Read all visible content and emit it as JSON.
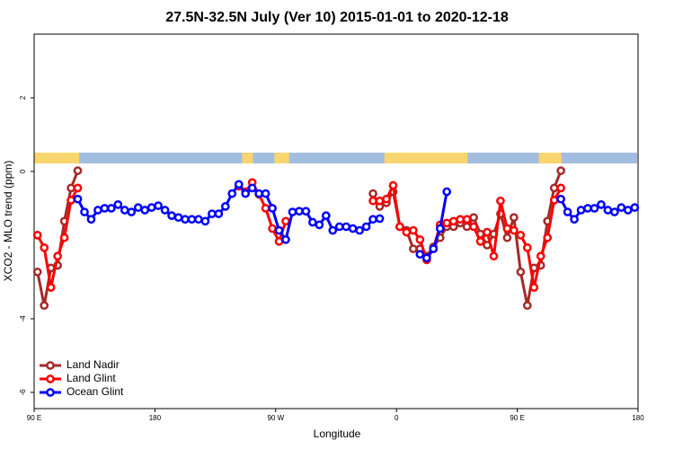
{
  "chart_data": {
    "type": "line",
    "title": "27.5N-32.5N July (Ver 10)   2015-01-01 to 2020-12-18",
    "x_label": "Longitude",
    "y_label": "XCO2 - MLO trend (ppm)",
    "xlim": [
      90,
      540
    ],
    "ylim": [
      -6.44,
      3.73
    ],
    "xticks": [
      {
        "value": 90,
        "label": "90 E"
      },
      180,
      {
        "value": 270,
        "label": "90 W"
      },
      {
        "value": 360,
        "label": "0"
      },
      {
        "value": 450,
        "label": "90 E"
      },
      {
        "value": 540,
        "label": "180"
      }
    ],
    "yticks": [
      -6,
      -4,
      0,
      2
    ],
    "legend": "bottom-left",
    "land_color": "#f9d56e",
    "ocean_color": "#a3bde0",
    "land_ranges": [
      [
        90,
        123.5
      ],
      [
        245,
        253
      ],
      [
        269,
        280
      ],
      [
        351,
        413
      ],
      [
        466,
        483
      ]
    ],
    "series": [
      {
        "name": "Land Nadir",
        "color": "#a52a2a",
        "x": [
          92.5,
          97.5,
          102.5,
          107.5,
          112.5,
          117.5,
          122.5,
          127.5,
          342.5,
          347.5,
          352.5,
          357.5,
          362.5,
          367.5,
          372.5,
          377.5,
          382.5,
          387.5,
          392.5,
          397.5,
          402.5,
          407.5,
          412.5,
          417.5,
          422.5,
          427.5,
          432.5,
          437.5,
          442.5,
          447.5,
          452.5,
          457.5,
          462.5,
          467.5,
          472.5,
          477.5,
          482.5
        ],
        "values": [
          -2.73,
          -3.64,
          -2.62,
          -2.55,
          -1.35,
          -0.45,
          0.02,
          null,
          -0.6,
          -0.95,
          -0.85,
          -0.55,
          -1.5,
          -1.6,
          -2.1,
          -2.1,
          -2.3,
          -2.05,
          -1.8,
          -1.5,
          -1.5,
          -1.4,
          -1.5,
          -1.25,
          -1.7,
          -2.0,
          -1.7,
          -1.15,
          -1.8,
          -1.25,
          -2.73,
          -3.64,
          -2.62,
          -2.55,
          -1.35,
          -0.45,
          0.02
        ]
      },
      {
        "name": "Land Glint",
        "color": "#ff0000",
        "x": [
          92.5,
          97.5,
          102.5,
          107.5,
          112.5,
          117.5,
          122.5,
          127.5,
          242.5,
          247.5,
          252.5,
          257.5,
          262.5,
          267.5,
          272.5,
          277.5,
          282.5,
          342.5,
          347.5,
          352.5,
          357.5,
          362.5,
          367.5,
          372.5,
          377.5,
          382.5,
          387.5,
          392.5,
          397.5,
          402.5,
          407.5,
          412.5,
          417.5,
          422.5,
          427.5,
          432.5,
          437.5,
          442.5,
          447.5,
          452.5,
          457.5,
          462.5,
          467.5,
          472.5,
          477.5,
          482.5
        ],
        "values": [
          -1.73,
          -2.07,
          -3.15,
          -2.3,
          -1.8,
          -0.78,
          -0.45,
          null,
          -0.4,
          -0.55,
          -0.3,
          -0.62,
          -1.0,
          -1.55,
          -1.9,
          -1.35,
          null,
          -0.8,
          -0.8,
          -0.75,
          -0.38,
          -1.5,
          -1.65,
          -1.6,
          -1.85,
          -2.4,
          -2.1,
          -1.45,
          -1.4,
          -1.35,
          -1.3,
          -1.3,
          -1.5,
          -1.9,
          -1.65,
          -2.3,
          -0.8,
          -1.55,
          -1.6,
          -1.73,
          -2.07,
          -3.15,
          -2.3,
          -1.8,
          -0.78,
          -0.45
        ]
      },
      {
        "name": "Ocean Glint",
        "color": "#0000ff",
        "x": [
          122.5,
          127.5,
          132.5,
          137.5,
          142.5,
          147.5,
          152.5,
          157.5,
          162.5,
          167.5,
          172.5,
          177.5,
          182.5,
          187.5,
          192.5,
          197.5,
          202.5,
          207.5,
          212.5,
          217.5,
          222.5,
          227.5,
          232.5,
          237.5,
          242.5,
          247.5,
          252.5,
          257.5,
          262.5,
          267.5,
          272.5,
          277.5,
          282.5,
          287.5,
          292.5,
          297.5,
          302.5,
          307.5,
          312.5,
          317.5,
          322.5,
          327.5,
          332.5,
          337.5,
          342.5,
          347.5,
          372.5,
          377.5,
          382.5,
          387.5,
          392.5,
          397.5,
          477.5,
          482.5,
          487.5,
          492.5,
          497.5,
          502.5,
          507.5,
          512.5,
          517.5,
          522.5,
          527.5,
          532.5,
          537.5
        ],
        "values": [
          -0.75,
          -1.1,
          -1.3,
          -1.05,
          -1.0,
          -1.0,
          -0.9,
          -1.05,
          -1.1,
          -0.98,
          -1.05,
          -0.98,
          -0.93,
          -1.05,
          -1.2,
          -1.25,
          -1.3,
          -1.3,
          -1.3,
          -1.35,
          -1.15,
          -1.15,
          -0.95,
          -0.6,
          -0.35,
          -0.6,
          -0.45,
          -0.6,
          -0.6,
          -1.0,
          -1.6,
          -1.85,
          -1.1,
          -1.08,
          -1.08,
          -1.38,
          -1.45,
          -1.2,
          -1.6,
          -1.5,
          -1.5,
          -1.55,
          -1.6,
          -1.5,
          -1.3,
          -1.28,
          null,
          -2.25,
          -2.35,
          -2.1,
          -1.55,
          -0.55,
          null,
          -0.75,
          -1.1,
          -1.3,
          -1.05,
          -1.0,
          -1.0,
          -0.9,
          -1.05,
          -1.1,
          -0.98,
          -1.05,
          -0.98
        ]
      }
    ]
  }
}
